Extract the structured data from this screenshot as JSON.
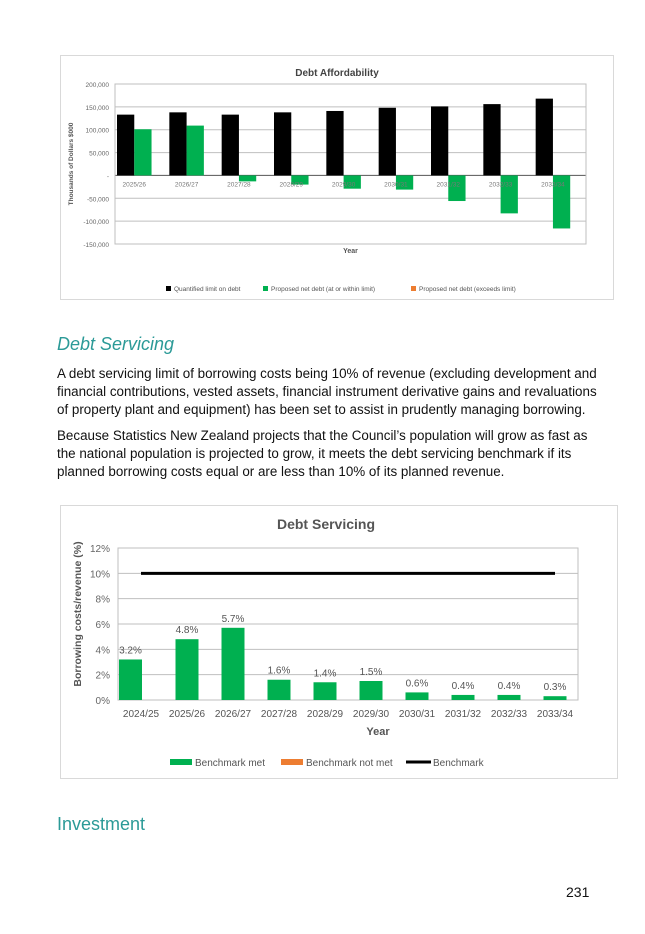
{
  "sections": {
    "debt_servicing_heading": "Debt Servicing",
    "para1": "A debt servicing limit of borrowing costs being 10% of revenue (excluding development and financial contributions, vested assets, financial instrument derivative gains and revaluations of property plant and equipment) has been set to assist in prudently managing borrowing.",
    "para2": "Because Statistics New Zealand projects that the Council’s population will grow as fast as the national population is projected to grow, it meets the debt servicing benchmark if its planned borrowing costs equal or are less than 10% of its planned revenue.",
    "investment_heading": "Investment",
    "page_number": "231"
  },
  "colors": {
    "black": "#000000",
    "green": "#00b050",
    "orange": "#ed7d31",
    "heading": "#2b9a97"
  },
  "chart_data": [
    {
      "type": "bar",
      "title": "Debt Affordability",
      "xlabel": "Year",
      "ylabel": "Thousands of Dollars $000",
      "ylim": [
        -150000,
        200000
      ],
      "yticks": [
        200000,
        150000,
        100000,
        50000,
        0,
        -50000,
        -100000,
        -150000
      ],
      "ytick_labels": [
        "200,000",
        "150,000",
        "100,000",
        "50,000",
        "-",
        "-50,000",
        "-100,000",
        "-150,000"
      ],
      "categories": [
        "2025/26",
        "2026/27",
        "2027/28",
        "2028/29",
        "2029/30",
        "2030/31",
        "2031/32",
        "2032/33",
        "2033/34"
      ],
      "series": [
        {
          "name": "Quantified limit on debt",
          "color": "#000000",
          "values": [
            133000,
            138000,
            133000,
            138000,
            141000,
            148000,
            151000,
            156000,
            168000
          ]
        },
        {
          "name": "Proposed net debt (at or within limit)",
          "color": "#00b050",
          "values": [
            101000,
            109000,
            -13000,
            -20000,
            -29000,
            -31000,
            -56000,
            -83000,
            -116000
          ]
        },
        {
          "name": "Proposed net debt (exceeds limit)",
          "color": "#ed7d31",
          "values": [
            0,
            0,
            0,
            0,
            0,
            0,
            0,
            0,
            0
          ]
        }
      ],
      "legend": "bottom"
    },
    {
      "type": "bar",
      "title": "Debt Servicing",
      "xlabel": "Year",
      "ylabel": "Borrowing costs/revenue (%)",
      "ylim": [
        0,
        12
      ],
      "yticks": [
        0,
        2,
        4,
        6,
        8,
        10,
        12
      ],
      "ytick_labels": [
        "0%",
        "2%",
        "4%",
        "6%",
        "8%",
        "10%",
        "12%"
      ],
      "categories": [
        "2024/25",
        "2025/26",
        "2026/27",
        "2027/28",
        "2028/29",
        "2029/30",
        "2030/31",
        "2031/32",
        "2032/33",
        "2033/34"
      ],
      "series": [
        {
          "name": "Benchmark met",
          "color": "#00b050",
          "values": [
            3.2,
            4.8,
            5.7,
            1.6,
            1.4,
            1.5,
            0.6,
            0.4,
            0.4,
            0.3
          ],
          "labels": [
            "3.2%",
            "4.8%",
            "5.7%",
            "1.6%",
            "1.4%",
            "1.5%",
            "0.6%",
            "0.4%",
            "0.4%",
            "0.3%"
          ]
        },
        {
          "name": "Benchmark not met",
          "color": "#ed7d31",
          "values": [
            0,
            0,
            0,
            0,
            0,
            0,
            0,
            0,
            0,
            0
          ]
        },
        {
          "name": "Benchmark",
          "color": "#000000",
          "type": "line",
          "values": [
            10,
            10,
            10,
            10,
            10,
            10,
            10,
            10,
            10,
            10
          ]
        }
      ],
      "legend": "bottom"
    }
  ]
}
